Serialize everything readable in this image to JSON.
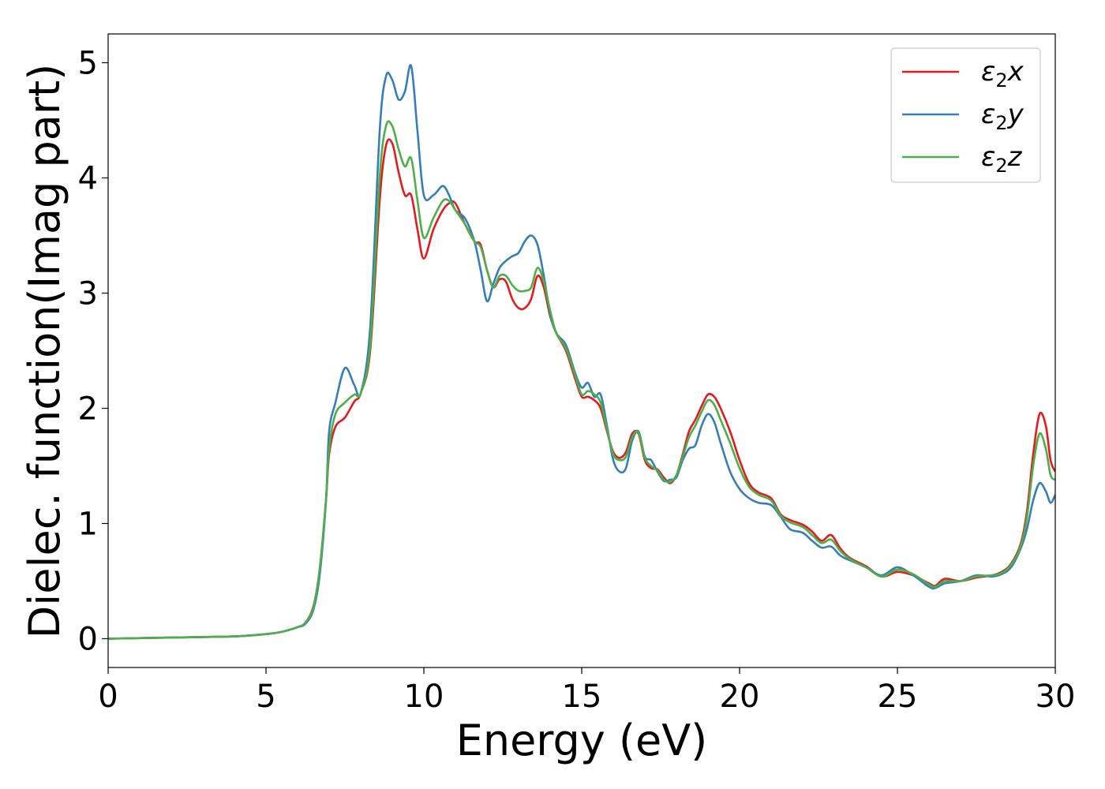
{
  "chart_data": {
    "type": "line",
    "title": "",
    "xlabel": "Energy (eV)",
    "ylabel": "Dielec. function(Imag part)",
    "xlim": [
      0,
      30
    ],
    "ylim": [
      -0.25,
      5.25
    ],
    "xticks": [
      0,
      5,
      10,
      15,
      20,
      25,
      30
    ],
    "yticks": [
      0,
      1,
      2,
      3,
      4,
      5
    ],
    "grid": false,
    "legend_position": "top-right",
    "x": [
      0,
      2,
      4,
      5,
      5.5,
      6,
      6.25,
      6.5,
      6.7,
      6.9,
      7.0,
      7.2,
      7.5,
      7.8,
      8.0,
      8.3,
      8.6,
      8.8,
      9.0,
      9.2,
      9.4,
      9.6,
      9.8,
      10.0,
      10.3,
      10.6,
      10.8,
      11.0,
      11.3,
      11.6,
      11.8,
      12.0,
      12.2,
      12.4,
      12.6,
      12.8,
      13.0,
      13.2,
      13.4,
      13.6,
      13.8,
      14.0,
      14.2,
      14.5,
      14.8,
      15.0,
      15.2,
      15.4,
      15.6,
      15.8,
      16.0,
      16.2,
      16.4,
      16.6,
      16.8,
      17.0,
      17.2,
      17.4,
      17.6,
      17.8,
      18.0,
      18.2,
      18.4,
      18.6,
      18.8,
      19.0,
      19.2,
      19.4,
      19.7,
      20.0,
      20.3,
      20.6,
      21.0,
      21.3,
      21.6,
      22.0,
      22.3,
      22.6,
      22.9,
      23.2,
      23.5,
      24.0,
      24.5,
      25.0,
      25.5,
      26.0,
      26.2,
      26.5,
      27.0,
      27.5,
      28.0,
      28.3,
      28.6,
      28.9,
      29.1,
      29.3,
      29.5,
      29.7,
      29.85,
      30.0
    ],
    "series": [
      {
        "name": "ε2x",
        "color": "#e41a1c",
        "values": [
          0.0,
          0.01,
          0.02,
          0.04,
          0.06,
          0.1,
          0.14,
          0.28,
          0.6,
          1.2,
          1.6,
          1.84,
          1.92,
          2.06,
          2.13,
          2.5,
          3.8,
          4.28,
          4.3,
          4.05,
          3.85,
          3.85,
          3.55,
          3.3,
          3.55,
          3.72,
          3.78,
          3.78,
          3.6,
          3.45,
          3.42,
          3.2,
          3.05,
          3.12,
          3.1,
          2.95,
          2.87,
          2.87,
          2.95,
          3.15,
          3.05,
          2.8,
          2.65,
          2.5,
          2.25,
          2.1,
          2.1,
          2.07,
          2.0,
          1.8,
          1.62,
          1.57,
          1.62,
          1.78,
          1.78,
          1.55,
          1.48,
          1.47,
          1.4,
          1.35,
          1.42,
          1.6,
          1.8,
          1.9,
          2.02,
          2.12,
          2.1,
          2.0,
          1.8,
          1.55,
          1.35,
          1.27,
          1.22,
          1.08,
          1.03,
          0.99,
          0.93,
          0.85,
          0.9,
          0.78,
          0.7,
          0.63,
          0.54,
          0.58,
          0.55,
          0.48,
          0.46,
          0.52,
          0.5,
          0.53,
          0.55,
          0.58,
          0.65,
          0.82,
          1.1,
          1.6,
          1.95,
          1.85,
          1.55,
          1.45
        ]
      },
      {
        "name": "ε2y",
        "color": "#377eb8",
        "values": [
          0.0,
          0.01,
          0.02,
          0.04,
          0.06,
          0.1,
          0.13,
          0.25,
          0.55,
          1.2,
          1.8,
          2.05,
          2.35,
          2.2,
          2.13,
          2.7,
          4.4,
          4.88,
          4.85,
          4.68,
          4.75,
          4.97,
          4.4,
          3.85,
          3.85,
          3.93,
          3.85,
          3.72,
          3.65,
          3.45,
          3.2,
          2.93,
          3.08,
          3.22,
          3.28,
          3.32,
          3.35,
          3.45,
          3.5,
          3.42,
          3.15,
          2.82,
          2.65,
          2.55,
          2.3,
          2.18,
          2.22,
          2.1,
          2.12,
          1.85,
          1.55,
          1.45,
          1.48,
          1.72,
          1.8,
          1.58,
          1.55,
          1.45,
          1.37,
          1.38,
          1.4,
          1.55,
          1.65,
          1.68,
          1.85,
          1.95,
          1.88,
          1.7,
          1.45,
          1.3,
          1.22,
          1.18,
          1.16,
          1.06,
          0.95,
          0.92,
          0.85,
          0.79,
          0.8,
          0.72,
          0.68,
          0.62,
          0.55,
          0.62,
          0.55,
          0.45,
          0.44,
          0.48,
          0.5,
          0.55,
          0.54,
          0.56,
          0.62,
          0.78,
          0.95,
          1.2,
          1.35,
          1.28,
          1.18,
          1.25
        ]
      },
      {
        "name": "ε2z",
        "color": "#4daf4a",
        "values": [
          0.0,
          0.01,
          0.02,
          0.04,
          0.06,
          0.1,
          0.14,
          0.27,
          0.6,
          1.2,
          1.65,
          1.95,
          2.05,
          2.12,
          2.13,
          2.55,
          4.0,
          4.45,
          4.45,
          4.25,
          4.1,
          4.17,
          3.8,
          3.48,
          3.65,
          3.8,
          3.8,
          3.72,
          3.6,
          3.45,
          3.4,
          3.2,
          3.05,
          3.15,
          3.15,
          3.07,
          3.02,
          3.02,
          3.05,
          3.22,
          3.1,
          2.85,
          2.65,
          2.52,
          2.28,
          2.12,
          2.15,
          2.12,
          2.05,
          1.82,
          1.6,
          1.55,
          1.58,
          1.75,
          1.79,
          1.57,
          1.5,
          1.46,
          1.38,
          1.36,
          1.42,
          1.58,
          1.75,
          1.85,
          1.97,
          2.07,
          2.03,
          1.9,
          1.7,
          1.48,
          1.32,
          1.25,
          1.2,
          1.07,
          1.01,
          0.97,
          0.9,
          0.83,
          0.86,
          0.76,
          0.69,
          0.62,
          0.54,
          0.6,
          0.56,
          0.47,
          0.45,
          0.5,
          0.5,
          0.54,
          0.55,
          0.57,
          0.64,
          0.8,
          1.05,
          1.5,
          1.78,
          1.65,
          1.42,
          1.38
        ]
      }
    ],
    "legend": [
      {
        "label": "ε",
        "sub": "2",
        "axis": "x",
        "color": "#e41a1c"
      },
      {
        "label": "ε",
        "sub": "2",
        "axis": "y",
        "color": "#377eb8"
      },
      {
        "label": "ε",
        "sub": "2",
        "axis": "z",
        "color": "#4daf4a"
      }
    ]
  }
}
